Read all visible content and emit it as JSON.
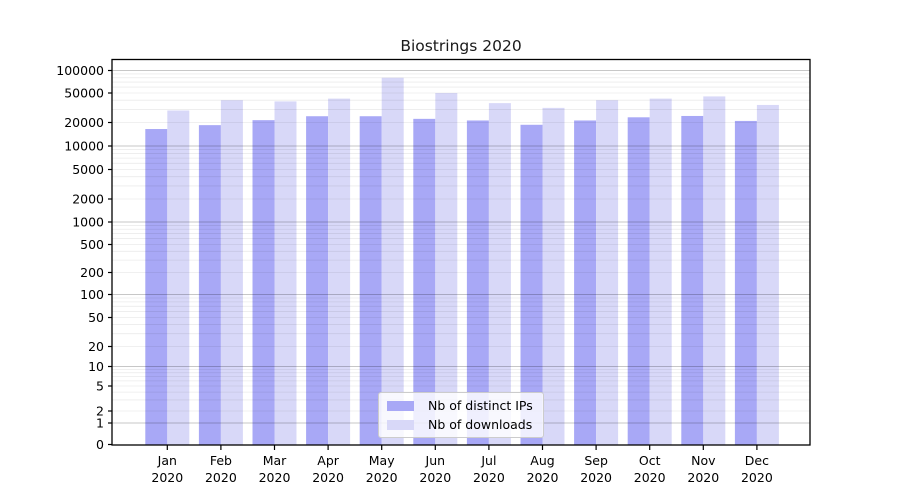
{
  "chart_data": {
    "type": "bar",
    "title": "Biostrings 2020",
    "categories": [
      "Jan",
      "Feb",
      "Mar",
      "Apr",
      "May",
      "Jun",
      "Jul",
      "Aug",
      "Sep",
      "Oct",
      "Nov",
      "Dec"
    ],
    "year_label": "2020",
    "series": [
      {
        "name": "Nb of distinct IPs",
        "color": "#a8a8f6",
        "values": [
          16500,
          18500,
          21500,
          24300,
          24300,
          22400,
          21300,
          18700,
          21300,
          23500,
          24500,
          21000
        ]
      },
      {
        "name": "Nb of downloads",
        "color": "#d8d8f8",
        "values": [
          29000,
          40000,
          38500,
          42000,
          80000,
          50000,
          36500,
          31500,
          40000,
          42000,
          45000,
          34500
        ]
      }
    ],
    "yaxis": {
      "scale": "log-with-zero",
      "tick_labels": [
        "100000",
        "50000",
        "20000",
        "10000",
        "5000",
        "2000",
        "1000",
        "500",
        "200",
        "100",
        "50",
        "20",
        "10",
        "5",
        "2",
        "1",
        "0"
      ],
      "tick_values": [
        100000,
        50000,
        20000,
        10000,
        5000,
        2000,
        1000,
        500,
        200,
        100,
        50,
        20,
        10,
        5,
        2,
        1,
        0
      ]
    },
    "legend": {
      "position": "bottom-center"
    },
    "grid": true
  },
  "colors": {
    "background": "#ffffff",
    "axis": "#000000",
    "bar_distinct_ips": "#a8a8f6",
    "bar_downloads": "#d8d8f8"
  }
}
